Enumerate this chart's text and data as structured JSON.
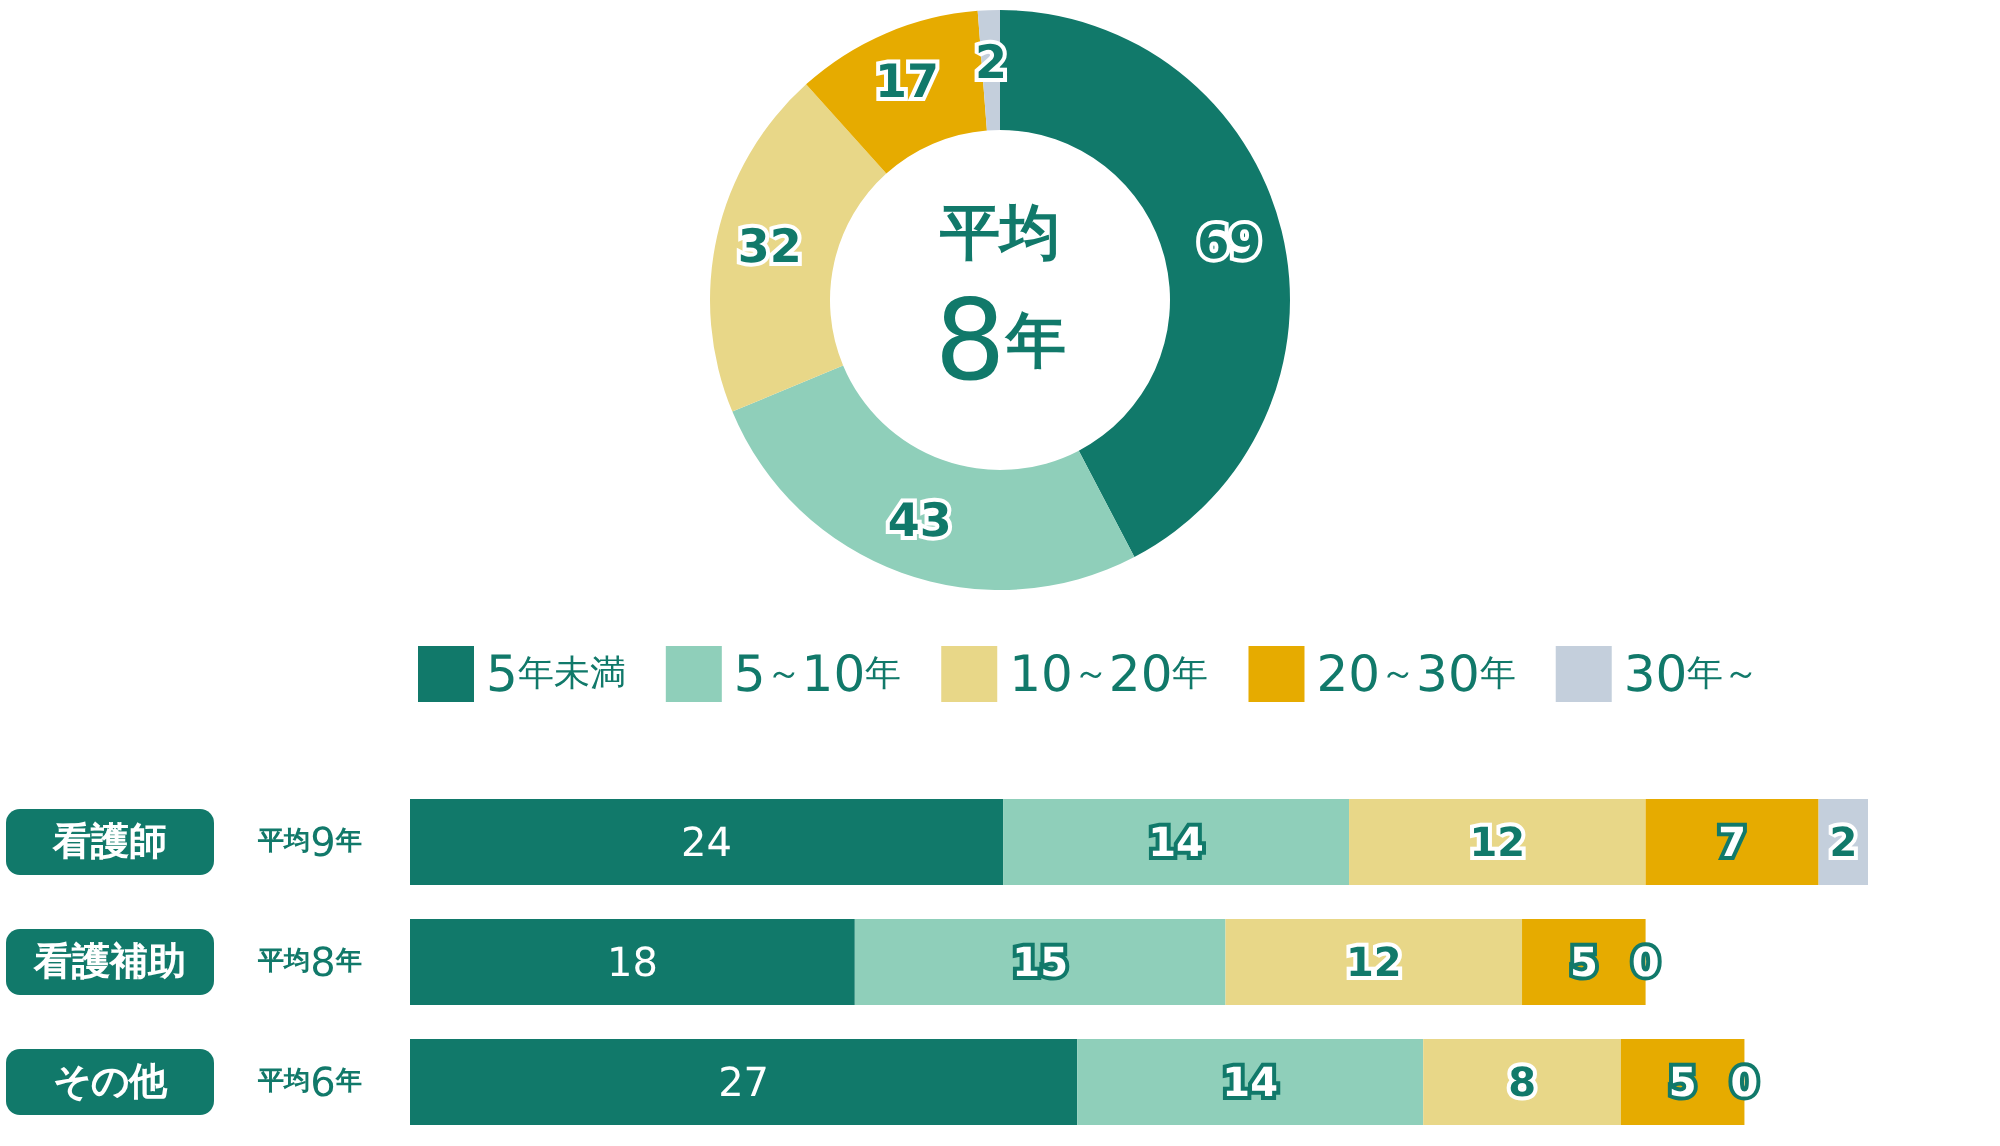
{
  "chart_data": [
    {
      "type": "donut",
      "categories": [
        "5年未満",
        "5～10年",
        "10～20年",
        "20～30年",
        "30年～"
      ],
      "values": [
        69,
        43,
        32,
        17,
        2
      ],
      "colors": [
        "#11796a",
        "#8fcfba",
        "#e8d788",
        "#e6ab00",
        "#c4cfdc"
      ],
      "data_labels": true,
      "legend": "bottom",
      "annotations": [
        "平均",
        "8年"
      ]
    },
    {
      "type": "bar",
      "orientation": "horizontal",
      "stacked": true,
      "categories": [
        "看護師",
        "看護補助",
        "その他"
      ],
      "series": [
        {
          "color": "#11796a",
          "values": [
            24,
            18,
            27
          ]
        },
        {
          "color": "#8fcfba",
          "values": [
            14,
            15,
            14
          ]
        },
        {
          "color": "#e8d788",
          "values": [
            12,
            12,
            8
          ]
        },
        {
          "color": "#e6ab00",
          "values": [
            7,
            5,
            5
          ]
        },
        {
          "color": "#c4cfdc",
          "values": [
            2,
            0,
            0
          ]
        }
      ],
      "tick_labels": "y",
      "data_labels": true,
      "annotations": [
        "平均9年",
        "平均8年",
        "平均6年"
      ]
    }
  ]
}
